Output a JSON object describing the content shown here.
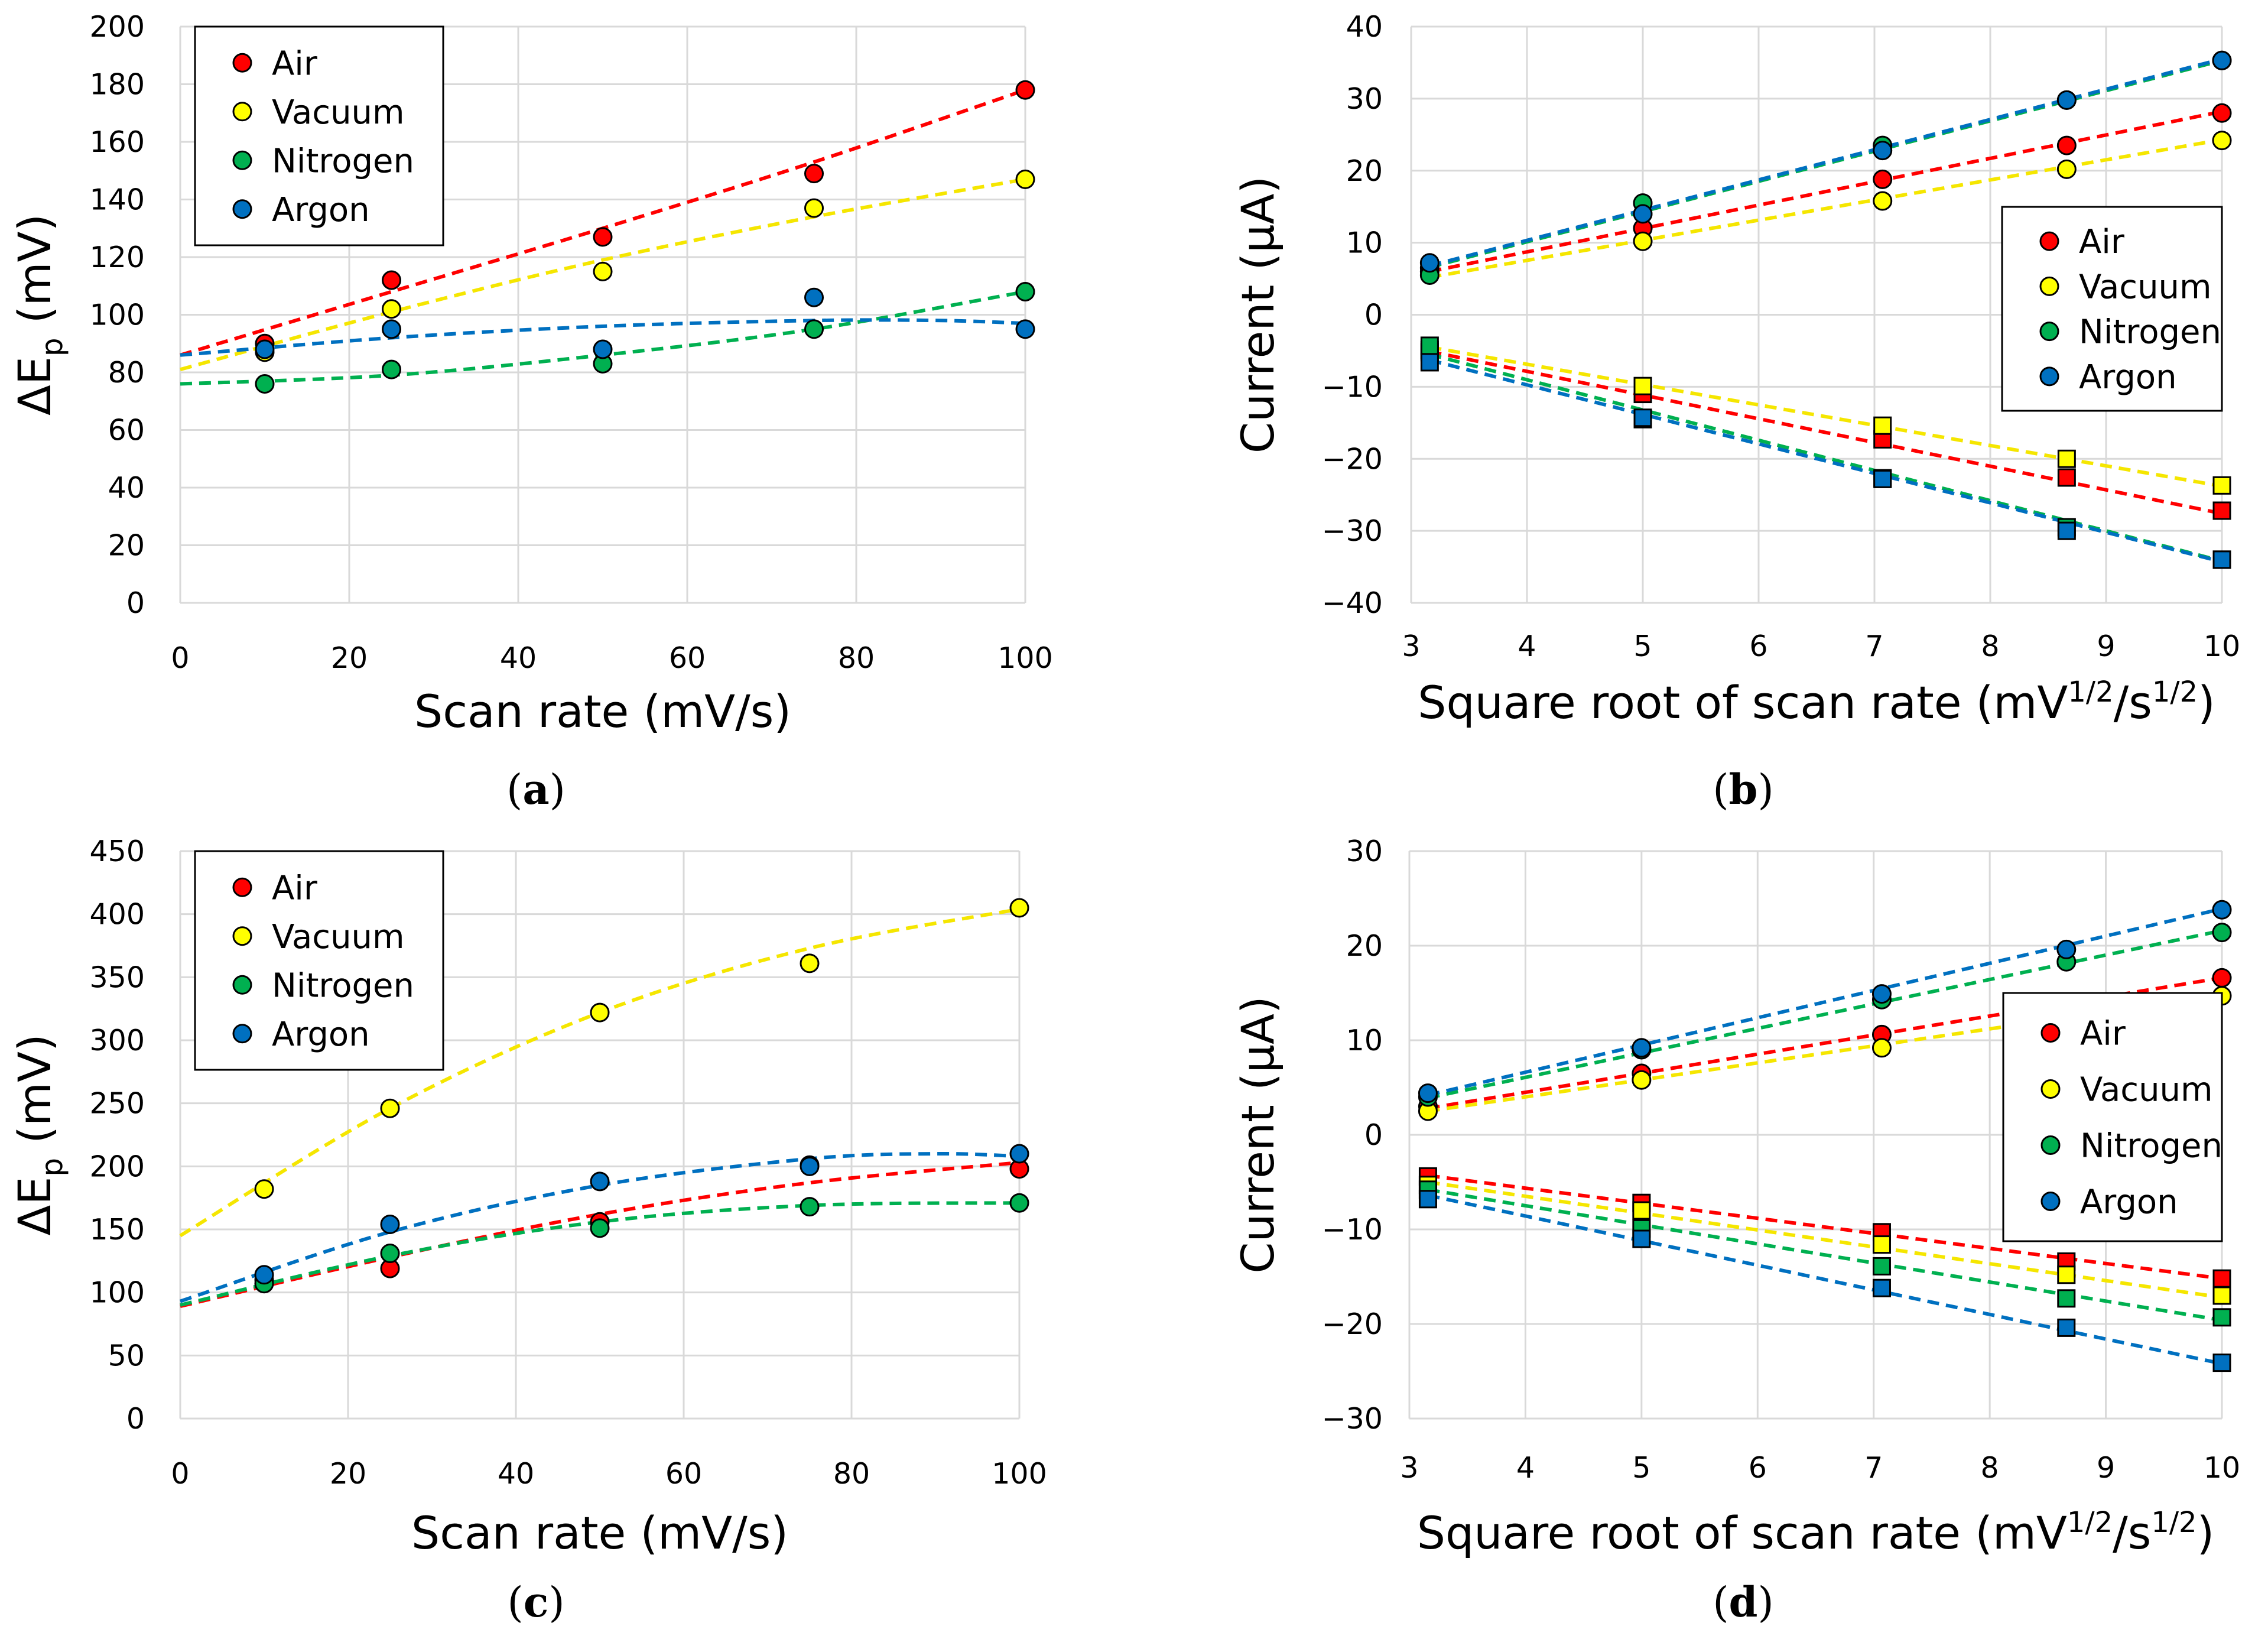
{
  "colors": {
    "Air": "#ff0000",
    "Vacuum": "#ffff00",
    "Nitrogen": "#00b050",
    "Argon": "#0070c0",
    "grid": "#d9d9d9",
    "marker_stroke": "#000000"
  },
  "chart_data": [
    {
      "panel": "(a)",
      "caption_letter": "a",
      "type": "scatter",
      "xlabel": "Scan rate (mV/s)",
      "ylabel_main": "ΔE",
      "ylabel_sub": "p",
      "ylabel_rest": " (mV)",
      "xlim": [
        0,
        100
      ],
      "ylim": [
        0,
        200
      ],
      "xticks": [
        0,
        20,
        40,
        60,
        80,
        100
      ],
      "yticks": [
        0,
        20,
        40,
        60,
        80,
        100,
        120,
        140,
        160,
        180,
        200
      ],
      "grid": true,
      "legend_position": "top-left",
      "legend": [
        "Air",
        "Vacuum",
        "Nitrogen",
        "Argon"
      ],
      "trendline": "polynomial (dashed)",
      "series": [
        {
          "name": "Air",
          "marker": "circle",
          "points": [
            [
              10,
              90
            ],
            [
              25,
              112
            ],
            [
              50,
              127
            ],
            [
              75,
              149
            ],
            [
              100,
              178
            ]
          ],
          "fit": [
            [
              0,
              86
            ],
            [
              25,
              108
            ],
            [
              50,
              130
            ],
            [
              75,
              153
            ],
            [
              100,
              178
            ]
          ]
        },
        {
          "name": "Vacuum",
          "marker": "circle",
          "points": [
            [
              10,
              87
            ],
            [
              25,
              102
            ],
            [
              50,
              115
            ],
            [
              75,
              137
            ],
            [
              100,
              147
            ]
          ],
          "fit": [
            [
              0,
              81
            ],
            [
              25,
              101
            ],
            [
              50,
              119
            ],
            [
              75,
              134
            ],
            [
              100,
              147
            ]
          ]
        },
        {
          "name": "Nitrogen",
          "marker": "circle",
          "points": [
            [
              10,
              76
            ],
            [
              25,
              81
            ],
            [
              50,
              83
            ],
            [
              75,
              95
            ],
            [
              100,
              108
            ]
          ],
          "fit": [
            [
              0,
              76
            ],
            [
              25,
              79
            ],
            [
              50,
              86
            ],
            [
              75,
              95
            ],
            [
              100,
              108
            ]
          ]
        },
        {
          "name": "Argon",
          "marker": "circle",
          "points": [
            [
              10,
              88
            ],
            [
              25,
              95
            ],
            [
              50,
              88
            ],
            [
              75,
              106
            ],
            [
              100,
              95
            ]
          ],
          "fit": [
            [
              0,
              86
            ],
            [
              25,
              92
            ],
            [
              50,
              96
            ],
            [
              75,
              98
            ],
            [
              90,
              98
            ],
            [
              100,
              97
            ]
          ]
        }
      ]
    },
    {
      "panel": "(b)",
      "caption_letter": "b",
      "type": "scatter",
      "xlabel_main": "Square root of scan rate (mV",
      "xlabel_sup1": "1/2",
      "xlabel_mid": "/s",
      "xlabel_sup2": "1/2",
      "xlabel_end": ")",
      "ylabel": "Current (μA)",
      "xlim": [
        3,
        10
      ],
      "ylim": [
        -40,
        40
      ],
      "xticks": [
        3,
        4,
        5,
        6,
        7,
        8,
        9,
        10
      ],
      "yticks": [
        -40,
        -30,
        -20,
        -10,
        0,
        10,
        20,
        30,
        40
      ],
      "grid": true,
      "legend_position": "right",
      "legend": [
        "Air",
        "Vacuum",
        "Nitrogen",
        "Argon"
      ],
      "trendline": "linear (dashed)",
      "series": [
        {
          "name": "Air",
          "marker": "circle",
          "points": [
            [
              3.16,
              6.5
            ],
            [
              5,
              12
            ],
            [
              7.07,
              18.8
            ],
            [
              8.66,
              23.5
            ],
            [
              10,
              28
            ]
          ],
          "fit": [
            [
              3.16,
              6
            ],
            [
              10,
              28.2
            ]
          ]
        },
        {
          "name": "Vacuum",
          "marker": "circle",
          "points": [
            [
              3.16,
              6
            ],
            [
              5,
              10.2
            ],
            [
              7.07,
              15.8
            ],
            [
              8.66,
              20.2
            ],
            [
              10,
              24.2
            ]
          ],
          "fit": [
            [
              3.16,
              5.2
            ],
            [
              10,
              24.3
            ]
          ]
        },
        {
          "name": "Nitrogen",
          "marker": "circle",
          "points": [
            [
              3.16,
              5.5
            ],
            [
              5,
              15.5
            ],
            [
              7.07,
              23.5
            ],
            [
              8.66,
              29.8
            ],
            [
              10,
              35.3
            ]
          ],
          "fit": [
            [
              3.16,
              6.6
            ],
            [
              10,
              35.3
            ]
          ]
        },
        {
          "name": "Argon",
          "marker": "circle",
          "points": [
            [
              3.16,
              7.2
            ],
            [
              5,
              14
            ],
            [
              7.07,
              22.8
            ],
            [
              8.66,
              29.8
            ],
            [
              10,
              35.3
            ]
          ],
          "fit": [
            [
              3.16,
              6.8
            ],
            [
              10,
              35.5
            ]
          ]
        },
        {
          "name": "Air",
          "marker": "square",
          "points": [
            [
              3.16,
              -5.2
            ],
            [
              5,
              -11
            ],
            [
              7.07,
              -17.3
            ],
            [
              8.66,
              -22.6
            ],
            [
              10,
              -27.2
            ]
          ],
          "fit": [
            [
              3.16,
              -5.1
            ],
            [
              10,
              -27.6
            ]
          ]
        },
        {
          "name": "Vacuum",
          "marker": "square",
          "points": [
            [
              3.16,
              -4.9
            ],
            [
              5,
              -9.9
            ],
            [
              7.07,
              -15.4
            ],
            [
              8.66,
              -20
            ],
            [
              10,
              -23.7
            ]
          ],
          "fit": [
            [
              3.16,
              -4.5
            ],
            [
              10,
              -23.8
            ]
          ]
        },
        {
          "name": "Nitrogen",
          "marker": "square",
          "points": [
            [
              3.16,
              -4.3
            ],
            [
              5,
              -14.5
            ],
            [
              7.07,
              -22.7
            ],
            [
              8.66,
              -29.5
            ],
            [
              10,
              -34
            ]
          ],
          "fit": [
            [
              3.16,
              -5.5
            ],
            [
              10,
              -34.2
            ]
          ]
        },
        {
          "name": "Argon",
          "marker": "square",
          "points": [
            [
              3.16,
              -6.6
            ],
            [
              5,
              -14.3
            ],
            [
              7.07,
              -22.8
            ],
            [
              8.66,
              -30
            ],
            [
              10,
              -34
            ]
          ],
          "fit": [
            [
              3.16,
              -6.3
            ],
            [
              10,
              -34.3
            ]
          ]
        }
      ]
    },
    {
      "panel": "(c)",
      "caption_letter": "c",
      "type": "scatter",
      "xlabel": "Scan rate (mV/s)",
      "ylabel_main": "ΔE",
      "ylabel_sub": "p",
      "ylabel_rest": " (mV)",
      "xlim": [
        0,
        100
      ],
      "ylim": [
        0,
        450
      ],
      "xticks": [
        0,
        20,
        40,
        60,
        80,
        100
      ],
      "yticks": [
        0,
        50,
        100,
        150,
        200,
        250,
        300,
        350,
        400,
        450
      ],
      "grid": true,
      "legend_position": "top-left",
      "legend": [
        "Air",
        "Vacuum",
        "Nitrogen",
        "Argon"
      ],
      "trendline": "polynomial (dashed)",
      "series": [
        {
          "name": "Air",
          "marker": "circle",
          "points": [
            [
              10,
              110
            ],
            [
              25,
              119
            ],
            [
              50,
              156
            ],
            [
              75,
              201
            ],
            [
              100,
              198
            ]
          ],
          "fit": [
            [
              0,
              89
            ],
            [
              25,
              128
            ],
            [
              50,
              162
            ],
            [
              75,
              187
            ],
            [
              100,
              203
            ]
          ]
        },
        {
          "name": "Vacuum",
          "marker": "circle",
          "points": [
            [
              10,
              182
            ],
            [
              25,
              246
            ],
            [
              50,
              322
            ],
            [
              75,
              361
            ],
            [
              100,
              405
            ]
          ],
          "fit": [
            [
              0,
              145
            ],
            [
              25,
              246
            ],
            [
              50,
              322
            ],
            [
              75,
              373
            ],
            [
              100,
              404
            ]
          ]
        },
        {
          "name": "Nitrogen",
          "marker": "circle",
          "points": [
            [
              10,
              107
            ],
            [
              25,
              131
            ],
            [
              50,
              151
            ],
            [
              75,
              168
            ],
            [
              100,
              171
            ]
          ],
          "fit": [
            [
              0,
              90
            ],
            [
              25,
              129
            ],
            [
              50,
              156
            ],
            [
              75,
              169
            ],
            [
              100,
              171
            ]
          ]
        },
        {
          "name": "Argon",
          "marker": "circle",
          "points": [
            [
              10,
              114
            ],
            [
              25,
              154
            ],
            [
              50,
              188
            ],
            [
              75,
              200
            ],
            [
              100,
              210
            ]
          ],
          "fit": [
            [
              0,
              93
            ],
            [
              25,
              148
            ],
            [
              50,
              185
            ],
            [
              75,
              206
            ],
            [
              90,
              210
            ],
            [
              100,
              208
            ]
          ]
        }
      ]
    },
    {
      "panel": "(d)",
      "caption_letter": "d",
      "type": "scatter",
      "xlabel_main": "Square root of scan rate (mV",
      "xlabel_sup1": "1/2",
      "xlabel_mid": "/s",
      "xlabel_sup2": "1/2",
      "xlabel_end": ")",
      "ylabel": "Current (μA)",
      "xlim": [
        3,
        10
      ],
      "ylim": [
        -30,
        30
      ],
      "xticks": [
        3,
        4,
        5,
        6,
        7,
        8,
        9,
        10
      ],
      "yticks": [
        -30,
        -20,
        -10,
        0,
        10,
        20,
        30
      ],
      "grid": true,
      "legend_position": "right",
      "legend": [
        "Air",
        "Vacuum",
        "Nitrogen",
        "Argon"
      ],
      "trendline": "linear (dashed)",
      "series": [
        {
          "name": "Air",
          "marker": "circle",
          "points": [
            [
              3.16,
              3
            ],
            [
              5,
              6.5
            ],
            [
              7.07,
              10.6
            ],
            [
              8.66,
              14
            ],
            [
              10,
              16.6
            ]
          ],
          "fit": [
            [
              3.16,
              2.8
            ],
            [
              10,
              16.6
            ]
          ]
        },
        {
          "name": "Vacuum",
          "marker": "circle",
          "points": [
            [
              3.16,
              2.5
            ],
            [
              5,
              5.8
            ],
            [
              7.07,
              9.2
            ],
            [
              8.66,
              12
            ],
            [
              10,
              14.7
            ]
          ],
          "fit": [
            [
              3.16,
              2.5
            ],
            [
              10,
              14.8
            ]
          ]
        },
        {
          "name": "Nitrogen",
          "marker": "circle",
          "points": [
            [
              3.16,
              4
            ],
            [
              5,
              9
            ],
            [
              7.07,
              14.3
            ],
            [
              8.66,
              18.3
            ],
            [
              10,
              21.4
            ]
          ],
          "fit": [
            [
              3.16,
              3.9
            ],
            [
              10,
              21.6
            ]
          ]
        },
        {
          "name": "Argon",
          "marker": "circle",
          "points": [
            [
              3.16,
              4.4
            ],
            [
              5,
              9.2
            ],
            [
              7.07,
              14.9
            ],
            [
              8.66,
              19.6
            ],
            [
              10,
              23.8
            ]
          ],
          "fit": [
            [
              3.16,
              4.2
            ],
            [
              10,
              23.9
            ]
          ]
        },
        {
          "name": "Air",
          "marker": "square",
          "points": [
            [
              3.16,
              -4.4
            ],
            [
              5,
              -7.2
            ],
            [
              7.07,
              -10.3
            ],
            [
              8.66,
              -13.4
            ],
            [
              10,
              -15.2
            ]
          ],
          "fit": [
            [
              3.16,
              -4.3
            ],
            [
              10,
              -15.2
            ]
          ]
        },
        {
          "name": "Vacuum",
          "marker": "square",
          "points": [
            [
              3.16,
              -5.3
            ],
            [
              5,
              -8
            ],
            [
              7.07,
              -11.6
            ],
            [
              8.66,
              -14.8
            ],
            [
              10,
              -17
            ]
          ],
          "fit": [
            [
              3.16,
              -5
            ],
            [
              10,
              -17.2
            ]
          ]
        },
        {
          "name": "Nitrogen",
          "marker": "square",
          "points": [
            [
              3.16,
              -5.8
            ],
            [
              5,
              -9.9
            ],
            [
              7.07,
              -13.9
            ],
            [
              8.66,
              -17.3
            ],
            [
              10,
              -19.3
            ]
          ],
          "fit": [
            [
              3.16,
              -5.8
            ],
            [
              10,
              -19.6
            ]
          ]
        },
        {
          "name": "Argon",
          "marker": "square",
          "points": [
            [
              3.16,
              -6.8
            ],
            [
              5,
              -11
            ],
            [
              7.07,
              -16.2
            ],
            [
              8.66,
              -20.4
            ],
            [
              10,
              -24.1
            ]
          ],
          "fit": [
            [
              3.16,
              -6.4
            ],
            [
              10,
              -24.2
            ]
          ]
        }
      ]
    }
  ]
}
